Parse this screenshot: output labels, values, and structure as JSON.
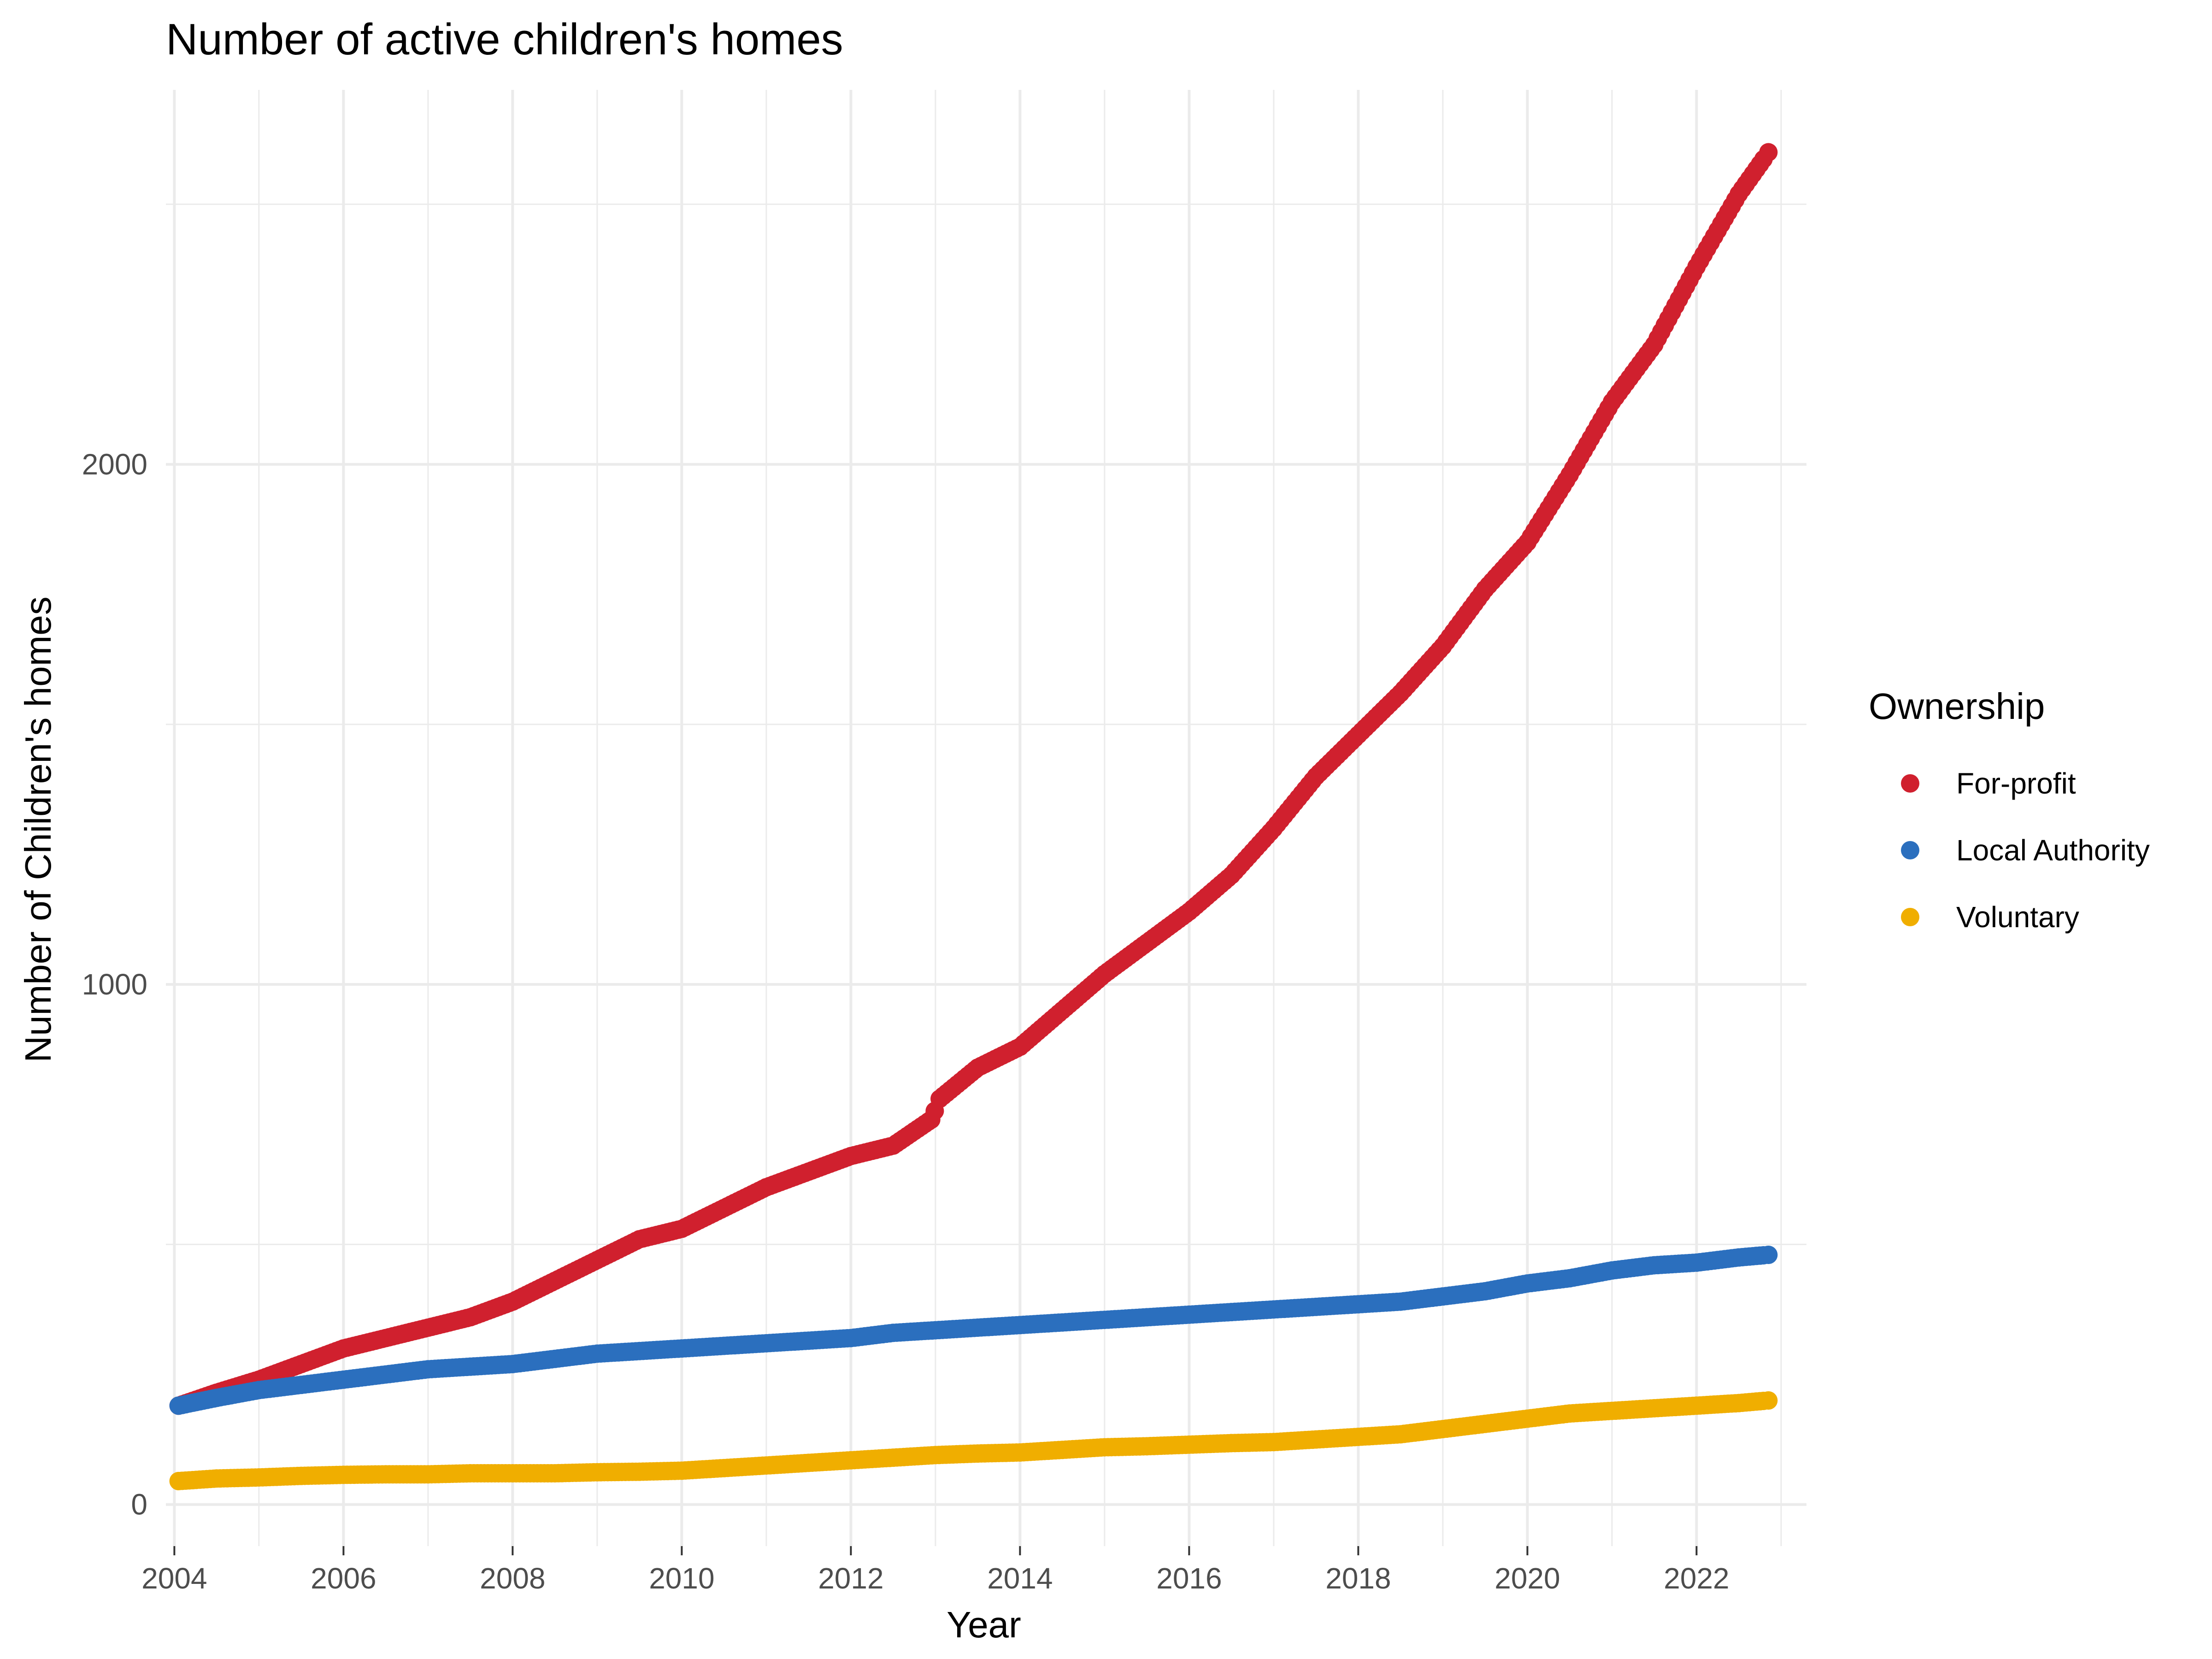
{
  "chart_data": {
    "type": "scatter",
    "title": "Number of active children's homes",
    "xlabel": "Year",
    "ylabel": "Number of Children's homes",
    "xlim": [
      2003.9,
      2023.3
    ],
    "ylim": [
      -80,
      2720
    ],
    "x_ticks": [
      2004,
      2006,
      2008,
      2010,
      2012,
      2014,
      2016,
      2018,
      2020,
      2022
    ],
    "x_tick_labels": [
      "2004",
      "2006",
      "2008",
      "2010",
      "2012",
      "2014",
      "2016",
      "2018",
      "2020",
      "2022"
    ],
    "y_ticks": [
      0,
      1000,
      2000
    ],
    "y_tick_labels": [
      "0",
      "1000",
      "2000"
    ],
    "grid": true,
    "legend": {
      "title": "Ownership",
      "position": "right"
    },
    "series": [
      {
        "name": "For-profit",
        "color": "#D0202E",
        "x": [
          2004.05,
          2004.5,
          2005.0,
          2005.5,
          2006.0,
          2006.5,
          2007.0,
          2007.5,
          2008.0,
          2008.5,
          2009.0,
          2009.5,
          2010.0,
          2010.5,
          2011.0,
          2011.5,
          2012.0,
          2012.5,
          2012.95,
          2013.05,
          2013.5,
          2014.0,
          2014.5,
          2015.0,
          2015.5,
          2016.0,
          2016.5,
          2017.0,
          2017.5,
          2018.0,
          2018.5,
          2019.0,
          2019.5,
          2020.0,
          2020.5,
          2021.0,
          2021.5,
          2022.0,
          2022.5,
          2022.85
        ],
        "y": [
          190,
          215,
          240,
          270,
          300,
          320,
          340,
          360,
          390,
          430,
          470,
          510,
          530,
          570,
          610,
          640,
          670,
          690,
          740,
          780,
          840,
          880,
          950,
          1020,
          1080,
          1140,
          1210,
          1300,
          1400,
          1480,
          1560,
          1650,
          1760,
          1850,
          1980,
          2120,
          2230,
          2380,
          2520,
          2600
        ]
      },
      {
        "name": "Local Authority",
        "color": "#2B6FBE",
        "x": [
          2004.05,
          2004.5,
          2005.0,
          2005.5,
          2006.0,
          2006.5,
          2007.0,
          2007.5,
          2008.0,
          2008.5,
          2009.0,
          2009.5,
          2010.0,
          2010.5,
          2011.0,
          2011.5,
          2012.0,
          2012.5,
          2013.0,
          2013.5,
          2014.0,
          2014.5,
          2015.0,
          2015.5,
          2016.0,
          2016.5,
          2017.0,
          2017.5,
          2018.0,
          2018.5,
          2019.0,
          2019.5,
          2020.0,
          2020.5,
          2021.0,
          2021.5,
          2022.0,
          2022.5,
          2022.85
        ],
        "y": [
          190,
          205,
          220,
          230,
          240,
          250,
          260,
          265,
          270,
          280,
          290,
          295,
          300,
          305,
          310,
          315,
          320,
          330,
          335,
          340,
          345,
          350,
          355,
          360,
          365,
          370,
          375,
          380,
          385,
          390,
          400,
          410,
          425,
          435,
          450,
          460,
          465,
          475,
          480
        ]
      },
      {
        "name": "Voluntary",
        "color": "#F0AE00",
        "x": [
          2004.05,
          2004.5,
          2005.0,
          2005.5,
          2006.0,
          2006.5,
          2007.0,
          2007.5,
          2008.0,
          2008.5,
          2009.0,
          2009.5,
          2010.0,
          2010.5,
          2011.0,
          2011.5,
          2012.0,
          2012.5,
          2013.0,
          2013.5,
          2014.0,
          2014.5,
          2015.0,
          2015.5,
          2016.0,
          2016.5,
          2017.0,
          2017.5,
          2018.0,
          2018.5,
          2019.0,
          2019.5,
          2020.0,
          2020.5,
          2021.0,
          2021.5,
          2022.0,
          2022.5,
          2022.85
        ],
        "y": [
          45,
          50,
          52,
          55,
          57,
          58,
          58,
          60,
          60,
          60,
          62,
          63,
          65,
          70,
          75,
          80,
          85,
          90,
          95,
          98,
          100,
          105,
          110,
          112,
          115,
          118,
          120,
          125,
          130,
          135,
          145,
          155,
          165,
          175,
          180,
          185,
          190,
          195,
          200
        ]
      }
    ]
  }
}
